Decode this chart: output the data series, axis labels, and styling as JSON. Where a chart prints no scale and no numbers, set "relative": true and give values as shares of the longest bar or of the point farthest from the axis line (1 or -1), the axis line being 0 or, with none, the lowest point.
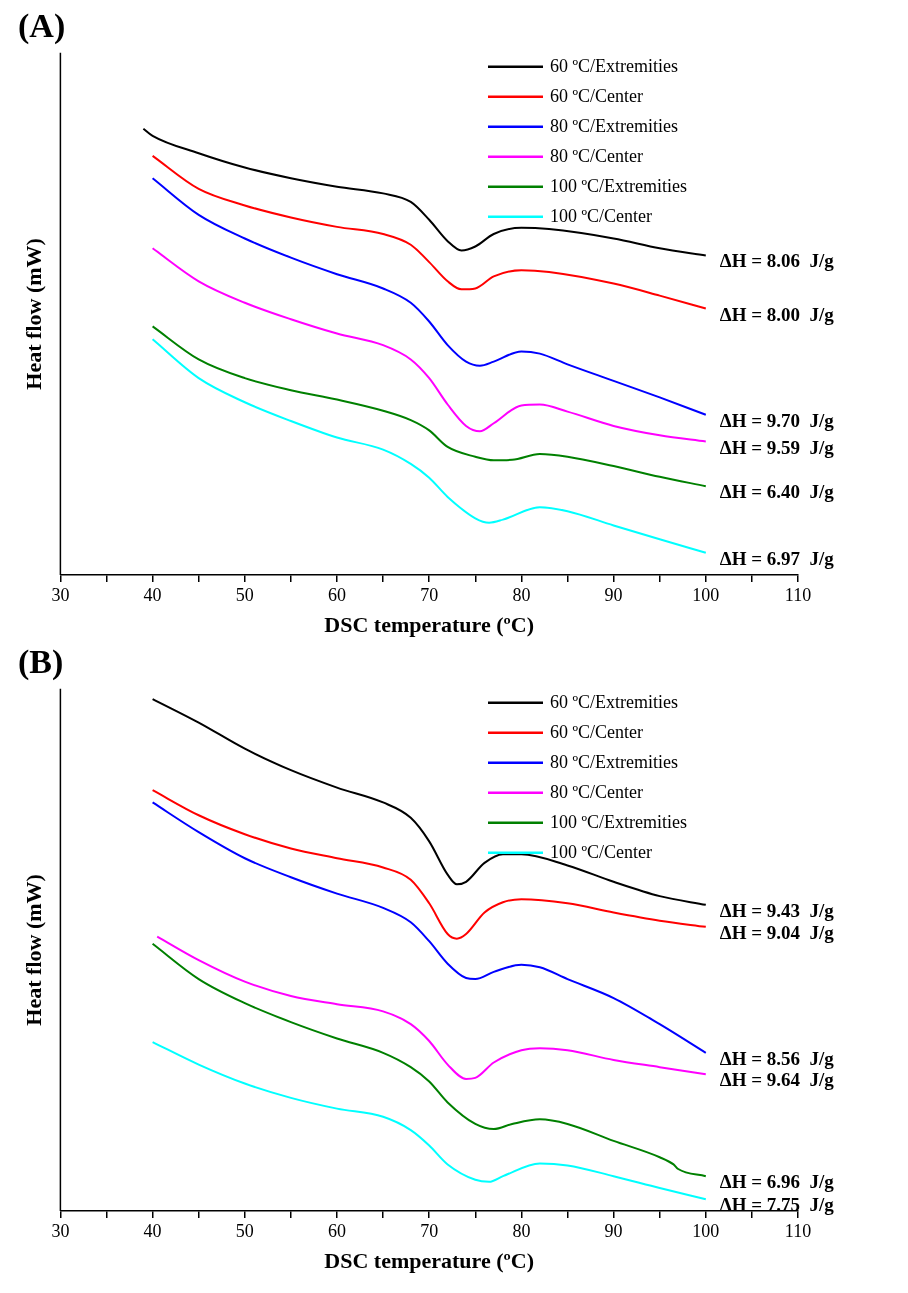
{
  "chart_data": [
    {
      "type": "line",
      "title": "(A)",
      "xlabel": "DSC temperature (ºC)",
      "ylabel": "Heat flow (mW)",
      "relative": true,
      "grid": false,
      "legend": "top right",
      "marker": "none",
      "line_style": "solid",
      "tick_labels": "x",
      "xlim": [
        30,
        110
      ],
      "xticks": [
        30,
        {
          "value": 35,
          "label": null
        },
        40,
        {
          "value": 45,
          "label": null
        },
        50,
        {
          "value": 55,
          "label": null
        },
        60,
        {
          "value": 65,
          "label": null
        },
        70,
        {
          "value": 75,
          "label": null
        },
        80,
        {
          "value": 85,
          "label": null
        },
        90,
        {
          "value": 95,
          "label": null
        },
        100,
        {
          "value": 105,
          "label": null
        },
        110
      ],
      "series": [
        {
          "name": "60 ºC/Extremities",
          "color": "#000000",
          "x": [
            39,
            40,
            45,
            50,
            55,
            60,
            65,
            68,
            70,
            72,
            73.5,
            75,
            77,
            80,
            83,
            90,
            95,
            100
          ],
          "values": [
            1,
            0.984,
            0.945,
            0.913,
            0.889,
            0.87,
            0.855,
            0.836,
            0.796,
            0.748,
            0.727,
            0.736,
            0.764,
            0.778,
            0.775,
            0.754,
            0.732,
            0.716
          ]
        },
        {
          "name": "60 ºC/Center",
          "color": "#ff0000",
          "x": [
            40,
            45,
            50,
            55,
            60,
            65,
            68,
            70,
            72,
            73.5,
            75,
            77,
            80,
            83,
            90,
            95,
            100
          ],
          "values": [
            0.939,
            0.865,
            0.828,
            0.801,
            0.78,
            0.764,
            0.74,
            0.701,
            0.658,
            0.64,
            0.642,
            0.669,
            0.683,
            0.679,
            0.653,
            0.626,
            0.597
          ]
        },
        {
          "name": "80 ºC/Extremities",
          "color": "#0000ff",
          "x": [
            40,
            45,
            50,
            55,
            60,
            65,
            68,
            70,
            72,
            74,
            75.5,
            77,
            80,
            82,
            85,
            90,
            95,
            100
          ],
          "values": [
            0.889,
            0.807,
            0.754,
            0.711,
            0.674,
            0.642,
            0.61,
            0.568,
            0.515,
            0.478,
            0.469,
            0.478,
            0.501,
            0.496,
            0.472,
            0.435,
            0.398,
            0.359
          ]
        },
        {
          "name": "80 ºC/Center",
          "color": "#ff00ff",
          "x": [
            40,
            45,
            50,
            55,
            60,
            65,
            68,
            70,
            72,
            74,
            75.5,
            77,
            80,
            82,
            85,
            90,
            95,
            100
          ],
          "values": [
            0.732,
            0.658,
            0.61,
            0.573,
            0.541,
            0.515,
            0.483,
            0.441,
            0.382,
            0.334,
            0.322,
            0.34,
            0.38,
            0.382,
            0.366,
            0.334,
            0.313,
            0.299
          ]
        },
        {
          "name": "100 ºC/Extremities",
          "color": "#008000",
          "x": [
            40,
            45,
            50,
            55,
            60,
            65,
            68,
            70,
            72,
            75,
            77,
            79,
            82,
            85,
            90,
            95,
            100
          ],
          "values": [
            0.557,
            0.483,
            0.441,
            0.414,
            0.393,
            0.368,
            0.347,
            0.324,
            0.287,
            0.265,
            0.257,
            0.258,
            0.271,
            0.265,
            0.244,
            0.22,
            0.199
          ]
        },
        {
          "name": "100 ºC/Center",
          "color": "#00ffff",
          "x": [
            40,
            45,
            50,
            55,
            60,
            65,
            68,
            70,
            72,
            75,
            76.5,
            78,
            82,
            85,
            90,
            95,
            100
          ],
          "values": [
            0.528,
            0.441,
            0.387,
            0.345,
            0.308,
            0.281,
            0.249,
            0.218,
            0.175,
            0.127,
            0.117,
            0.124,
            0.152,
            0.143,
            0.111,
            0.08,
            0.05
          ]
        }
      ],
      "annotations": [
        "ΔH = 8.06  J/g",
        "ΔH = 8.00  J/g",
        "ΔH = 9.70  J/g",
        "ΔH = 9.59  J/g",
        "ΔH = 6.40  J/g",
        "ΔH = 6.97  J/g"
      ]
    },
    {
      "type": "line",
      "title": "(B)",
      "xlabel": "DSC temperature (ºC)",
      "ylabel": "Heat flow (mW)",
      "relative": true,
      "grid": false,
      "legend": "top right",
      "marker": "none",
      "line_style": "solid",
      "tick_labels": "x",
      "xlim": [
        30,
        110
      ],
      "xticks": [
        30,
        {
          "value": 35,
          "label": null
        },
        40,
        {
          "value": 45,
          "label": null
        },
        50,
        {
          "value": 55,
          "label": null
        },
        60,
        {
          "value": 65,
          "label": null
        },
        70,
        {
          "value": 75,
          "label": null
        },
        80,
        {
          "value": 85,
          "label": null
        },
        90,
        {
          "value": 95,
          "label": null
        },
        100,
        {
          "value": 105,
          "label": null
        },
        110
      ],
      "series": [
        {
          "name": "60 ºC/Extremities",
          "color": "#000000",
          "x": [
            40,
            45,
            50,
            55,
            60,
            65,
            68,
            70,
            72,
            73,
            74,
            76,
            78,
            80,
            85,
            90,
            95,
            100
          ],
          "values": [
            1,
            0.954,
            0.903,
            0.861,
            0.827,
            0.798,
            0.768,
            0.722,
            0.657,
            0.638,
            0.643,
            0.68,
            0.697,
            0.697,
            0.675,
            0.643,
            0.615,
            0.598
          ]
        },
        {
          "name": "60 ºC/Center",
          "color": "#ff0000",
          "x": [
            40,
            45,
            50,
            55,
            60,
            65,
            68,
            70,
            72,
            73,
            74,
            76,
            78,
            80,
            85,
            90,
            95,
            100
          ],
          "values": [
            0.822,
            0.773,
            0.736,
            0.708,
            0.689,
            0.671,
            0.647,
            0.601,
            0.541,
            0.532,
            0.541,
            0.583,
            0.603,
            0.609,
            0.601,
            0.583,
            0.567,
            0.555
          ]
        },
        {
          "name": "80 ºC/Extremities",
          "color": "#0000ff",
          "x": [
            40,
            45,
            50,
            55,
            60,
            65,
            68,
            70,
            72,
            74,
            75,
            77,
            80,
            82,
            85,
            90,
            95,
            100
          ],
          "values": [
            0.798,
            0.74,
            0.689,
            0.652,
            0.62,
            0.592,
            0.564,
            0.527,
            0.483,
            0.455,
            0.453,
            0.467,
            0.481,
            0.476,
            0.453,
            0.416,
            0.365,
            0.309
          ]
        },
        {
          "name": "80 ºC/Center",
          "color": "#ff00ff",
          "x": [
            40.5,
            45,
            50,
            55,
            60,
            65,
            68,
            70,
            72,
            74,
            75,
            77,
            80,
            82,
            85,
            90,
            95,
            100
          ],
          "values": [
            0.536,
            0.49,
            0.448,
            0.42,
            0.404,
            0.39,
            0.365,
            0.332,
            0.286,
            0.258,
            0.26,
            0.29,
            0.314,
            0.318,
            0.314,
            0.295,
            0.281,
            0.267
          ]
        },
        {
          "name": "100 ºC/Extremities",
          "color": "#008000",
          "x": [
            40,
            45,
            50,
            55,
            60,
            65,
            68,
            70,
            72,
            75,
            77,
            79,
            82,
            85,
            90,
            95,
            96.5,
            97,
            100
          ],
          "values": [
            0.522,
            0.453,
            0.406,
            0.369,
            0.337,
            0.309,
            0.281,
            0.253,
            0.212,
            0.17,
            0.16,
            0.17,
            0.179,
            0.17,
            0.137,
            0.105,
            0.091,
            0.082,
            0.068
          ]
        },
        {
          "name": "100 ºC/Center",
          "color": "#00ffff",
          "x": [
            40,
            45,
            50,
            55,
            60,
            65,
            68,
            70,
            72,
            75,
            76.5,
            78,
            82,
            85,
            90,
            95,
            100
          ],
          "values": [
            0.33,
            0.286,
            0.249,
            0.221,
            0.2,
            0.184,
            0.158,
            0.128,
            0.091,
            0.061,
            0.057,
            0.068,
            0.093,
            0.089,
            0.068,
            0.045,
            0.023
          ]
        }
      ],
      "annotations": [
        "ΔH = 9.43  J/g",
        "ΔH = 9.04  J/g",
        "ΔH = 8.56  J/g",
        "ΔH = 9.64  J/g",
        "ΔH = 6.96  J/g",
        "ΔH = 7.75  J/g"
      ]
    }
  ]
}
